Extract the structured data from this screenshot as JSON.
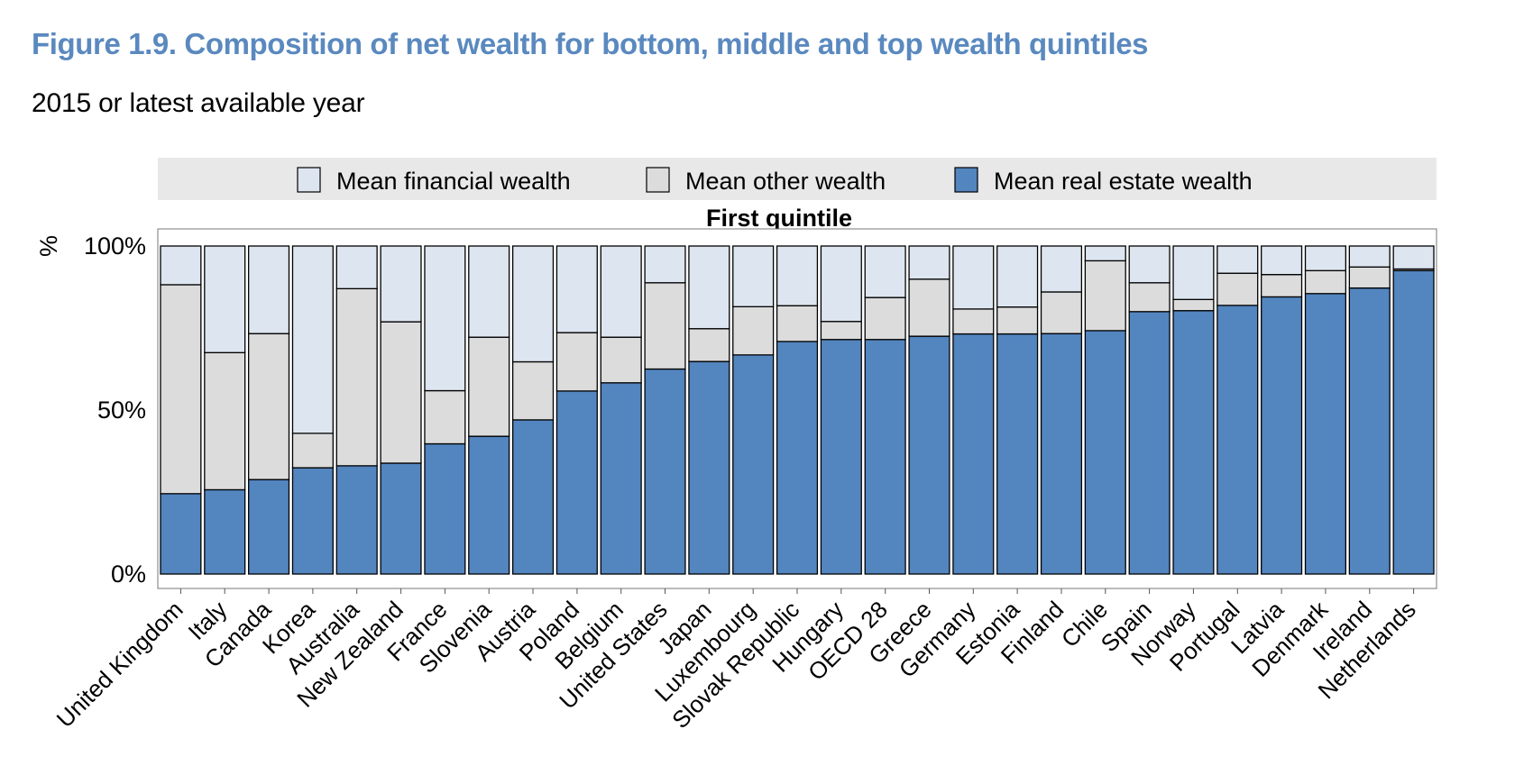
{
  "title": "Figure 1.9. Composition of net wealth for bottom, middle and top wealth quintiles",
  "subtitle": "2015 or latest available year",
  "colors": {
    "financial": "#dde6f0",
    "other": "#dcdcdc",
    "real_estate": "#5385bf",
    "legend_band": "#e8e8e8"
  },
  "chart_data": {
    "type": "bar",
    "stacked": true,
    "panel_title": "First quintile",
    "ylabel": "%",
    "ylim": [
      0,
      100
    ],
    "yticks": [
      "0%",
      "50%",
      "100%"
    ],
    "legend_position": "top",
    "categories": [
      "United Kingdom",
      "Italy",
      "Canada",
      "Korea",
      "Australia",
      "New Zealand",
      "France",
      "Slovenia",
      "Austria",
      "Poland",
      "Belgium",
      "United States",
      "Japan",
      "Luxembourg",
      "Slovak Republic",
      "Hungary",
      "OECD 28",
      "Greece",
      "Germany",
      "Estonia",
      "Finland",
      "Chile",
      "Spain",
      "Norway",
      "Portugal",
      "Latvia",
      "Denmark",
      "Ireland",
      "Netherlands"
    ],
    "series": [
      {
        "name": "Mean real estate wealth",
        "color_key": "real_estate",
        "values": [
          24.5,
          25.7,
          28.8,
          32.4,
          33.0,
          33.8,
          39.7,
          42.0,
          47.0,
          55.8,
          58.3,
          62.5,
          64.8,
          66.8,
          70.9,
          71.5,
          71.5,
          72.5,
          73.2,
          73.2,
          73.3,
          74.2,
          80.0,
          80.3,
          81.9,
          84.5,
          85.5,
          87.2,
          92.5
        ]
      },
      {
        "name": "Mean other wealth",
        "color_key": "other",
        "values": [
          63.7,
          41.8,
          44.5,
          10.5,
          54.0,
          43.1,
          16.2,
          30.2,
          17.7,
          17.8,
          13.9,
          26.3,
          10.0,
          14.7,
          10.9,
          5.5,
          12.8,
          17.4,
          7.6,
          8.2,
          12.7,
          21.3,
          8.8,
          3.4,
          9.8,
          6.8,
          7.0,
          6.4,
          0.5
        ]
      },
      {
        "name": "Mean financial wealth",
        "color_key": "financial",
        "values": [
          11.8,
          32.5,
          26.7,
          57.1,
          13.0,
          23.1,
          44.1,
          27.8,
          35.3,
          26.4,
          27.8,
          11.2,
          25.2,
          18.5,
          18.2,
          23.0,
          15.7,
          10.1,
          19.2,
          18.6,
          14.0,
          4.5,
          11.2,
          16.3,
          8.3,
          8.7,
          7.5,
          6.4,
          7.0
        ]
      }
    ],
    "legend_order": [
      "Mean financial wealth",
      "Mean other wealth",
      "Mean real estate wealth"
    ]
  }
}
